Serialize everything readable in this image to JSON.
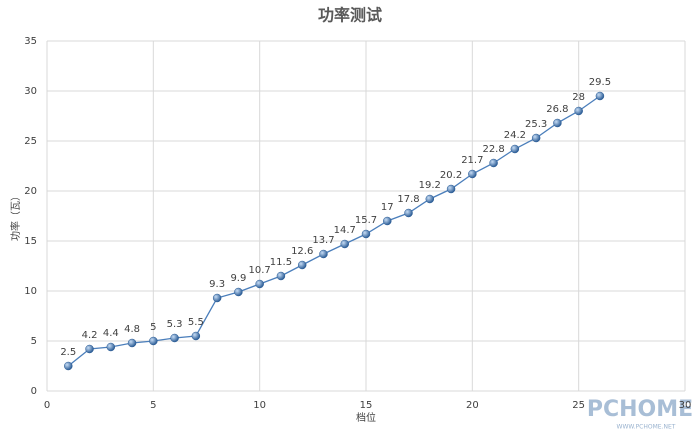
{
  "chart_data": {
    "type": "line",
    "title": "功率测试",
    "x_label": "档位",
    "y_label": "功率（瓦）",
    "x": [
      1,
      2,
      3,
      4,
      5,
      6,
      7,
      8,
      9,
      10,
      11,
      12,
      13,
      14,
      15,
      16,
      17,
      18,
      19,
      20,
      21,
      22,
      23,
      24,
      25,
      26
    ],
    "series": [
      {
        "name": "功率",
        "color": "#4a7ebb",
        "values": [
          2.5,
          4.2,
          4.4,
          4.8,
          5,
          5.3,
          5.5,
          9.3,
          9.9,
          10.7,
          11.5,
          12.6,
          13.7,
          14.7,
          15.7,
          17,
          17.8,
          19.2,
          20.2,
          21.7,
          22.8,
          24.2,
          25.3,
          26.8,
          28,
          29.5
        ]
      }
    ],
    "xlim": [
      0,
      30
    ],
    "xticks": [
      0,
      5,
      10,
      15,
      20,
      25,
      30
    ],
    "ylim": [
      0,
      35
    ],
    "yticks": [
      0,
      5,
      10,
      15,
      20,
      25,
      30,
      35
    ],
    "grid": true,
    "watermark": "PCHOME",
    "watermark_url": "WWW.PCHOME.NET"
  }
}
